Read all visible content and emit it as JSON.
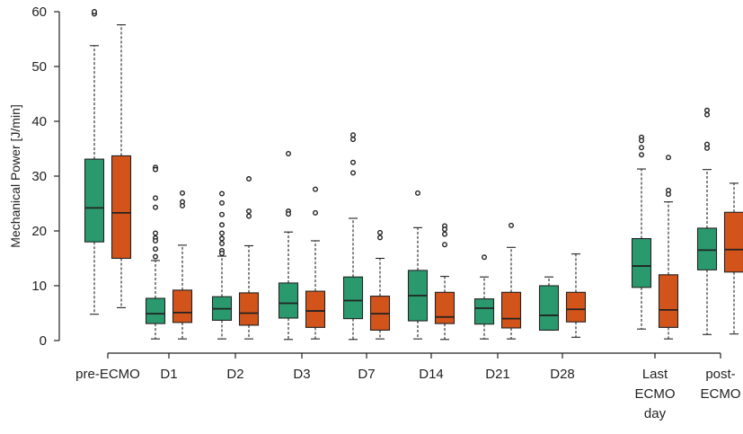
{
  "chart_data": {
    "type": "boxplot",
    "title": "",
    "xlabel": "",
    "ylabel": "Mechanical Power [J/min]",
    "ylim": [
      0,
      60
    ],
    "yticks": [
      0,
      10,
      20,
      30,
      40,
      50,
      60
    ],
    "grid": false,
    "colors": {
      "series_a": "#2a9a6e",
      "series_b": "#d2541a",
      "stroke": "#222222"
    },
    "categories": [
      {
        "lines": [
          "pre-ECMO"
        ]
      },
      {
        "lines": [
          "D1"
        ]
      },
      {
        "lines": [
          "D2"
        ]
      },
      {
        "lines": [
          "D3"
        ]
      },
      {
        "lines": [
          "D7"
        ]
      },
      {
        "lines": [
          "D14"
        ]
      },
      {
        "lines": [
          "D21"
        ]
      },
      {
        "lines": [
          "D28"
        ]
      },
      {
        "lines": [
          "Last",
          "ECMO",
          "day"
        ]
      },
      {
        "lines": [
          "post-",
          "ECMO"
        ]
      }
    ],
    "series": [
      {
        "name": "green",
        "boxes": [
          {
            "min": 4.8,
            "q1": 18.0,
            "median": 24.2,
            "q3": 33.1,
            "max": 53.8,
            "outliers": [
              59.6,
              60.0
            ]
          },
          {
            "min": 0.3,
            "q1": 3.1,
            "median": 4.9,
            "q3": 7.7,
            "max": 14.6,
            "outliers": [
              31.6,
              31.2,
              26.0,
              24.3,
              19.6,
              18.7,
              18.2,
              16.7,
              15.3
            ]
          },
          {
            "min": 0.3,
            "q1": 3.7,
            "median": 5.8,
            "q3": 8.0,
            "max": 15.4,
            "outliers": [
              26.8,
              25.1,
              23.0,
              21.1,
              19.6,
              18.6,
              17.7,
              16.4,
              15.9
            ]
          },
          {
            "min": 0.2,
            "q1": 4.1,
            "median": 6.8,
            "q3": 10.5,
            "max": 19.8,
            "outliers": [
              34.1,
              23.6,
              23.1
            ]
          },
          {
            "min": 0.2,
            "q1": 4.0,
            "median": 7.3,
            "q3": 11.6,
            "max": 22.3,
            "outliers": [
              37.5,
              36.7,
              32.5,
              30.6
            ]
          },
          {
            "min": 0.3,
            "q1": 3.6,
            "median": 8.2,
            "q3": 12.8,
            "max": 20.6,
            "outliers": [
              26.9
            ]
          },
          {
            "min": 0.3,
            "q1": 3.0,
            "median": 5.9,
            "q3": 7.6,
            "max": 11.6,
            "outliers": [
              15.2
            ]
          },
          {
            "min": 1.9,
            "q1": 1.9,
            "median": 4.6,
            "q3": 10.0,
            "max": 11.6,
            "outliers": []
          },
          {
            "min": 2.1,
            "q1": 9.7,
            "median": 13.6,
            "q3": 18.6,
            "max": 31.3,
            "outliers": [
              37.1,
              36.5,
              35.2,
              33.9
            ]
          },
          {
            "min": 1.1,
            "q1": 12.9,
            "median": 16.5,
            "q3": 20.5,
            "max": 31.2,
            "outliers": [
              42.0,
              41.2,
              35.8,
              35.1
            ]
          }
        ]
      },
      {
        "name": "orange",
        "boxes": [
          {
            "min": 6.0,
            "q1": 15.0,
            "median": 23.3,
            "q3": 33.7,
            "max": 57.6,
            "outliers": []
          },
          {
            "min": 0.3,
            "q1": 3.3,
            "median": 5.1,
            "q3": 9.2,
            "max": 17.4,
            "outliers": [
              26.9,
              25.3,
              24.6
            ]
          },
          {
            "min": 0.3,
            "q1": 2.8,
            "median": 5.0,
            "q3": 8.7,
            "max": 17.3,
            "outliers": [
              29.5,
              23.6,
              22.7
            ]
          },
          {
            "min": 0.3,
            "q1": 2.4,
            "median": 5.4,
            "q3": 9.0,
            "max": 18.2,
            "outliers": [
              27.6,
              23.3
            ]
          },
          {
            "min": 0.3,
            "q1": 1.9,
            "median": 4.9,
            "q3": 8.1,
            "max": 15.0,
            "outliers": [
              19.7,
              18.8
            ]
          },
          {
            "min": 0.2,
            "q1": 3.1,
            "median": 4.3,
            "q3": 8.8,
            "max": 11.7,
            "outliers": [
              20.9,
              20.3,
              19.4,
              17.5
            ]
          },
          {
            "min": 0.3,
            "q1": 2.3,
            "median": 4.0,
            "q3": 8.8,
            "max": 17.0,
            "outliers": [
              21.0
            ]
          },
          {
            "min": 0.6,
            "q1": 3.4,
            "median": 5.7,
            "q3": 8.8,
            "max": 15.8,
            "outliers": []
          },
          {
            "min": 0.3,
            "q1": 2.4,
            "median": 5.6,
            "q3": 12.0,
            "max": 25.3,
            "outliers": [
              33.4,
              27.4,
              26.7
            ]
          },
          {
            "min": 1.2,
            "q1": 12.5,
            "median": 16.6,
            "q3": 23.4,
            "max": 28.7,
            "outliers": []
          }
        ]
      }
    ]
  }
}
